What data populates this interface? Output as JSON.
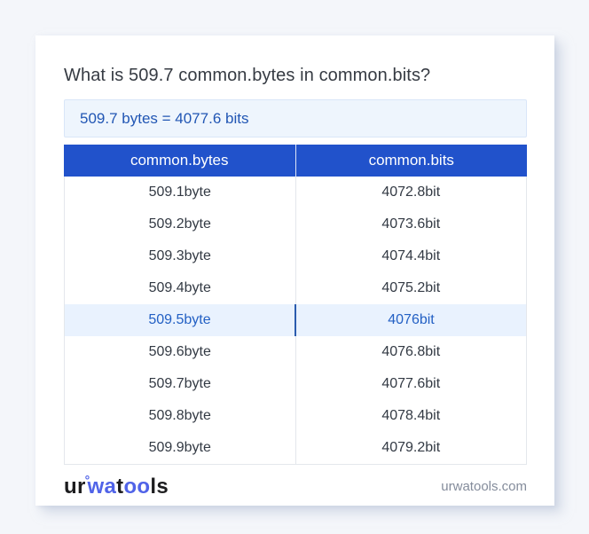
{
  "header": {
    "title": "What is 509.7 common.bytes in common.bits?",
    "result": "509.7 bytes = 4077.6 bits"
  },
  "table": {
    "headers": [
      "common.bytes",
      "common.bits"
    ],
    "rows": [
      {
        "bytes": "509.1byte",
        "bits": "4072.8bit"
      },
      {
        "bytes": "509.2byte",
        "bits": "4073.6bit"
      },
      {
        "bytes": "509.3byte",
        "bits": "4074.4bit"
      },
      {
        "bytes": "509.4byte",
        "bits": "4075.2bit"
      },
      {
        "bytes": "509.5byte",
        "bits": "4076bit"
      },
      {
        "bytes": "509.6byte",
        "bits": "4076.8bit"
      },
      {
        "bytes": "509.7byte",
        "bits": "4077.6bit"
      },
      {
        "bytes": "509.8byte",
        "bits": "4078.4bit"
      },
      {
        "bytes": "509.9byte",
        "bits": "4079.2bit"
      }
    ],
    "highlighted_row_index": 4
  },
  "footer": {
    "logo_parts": [
      "ur",
      "wa",
      "t",
      "oo",
      "ls"
    ],
    "logo_ring": "°",
    "domain": "urwatools.com"
  },
  "colors": {
    "page_bg": "#f4f6fa",
    "card_bg": "#ffffff",
    "header_blue": "#2152cb",
    "result_bg": "#eef5fd",
    "result_text": "#2156b4",
    "highlight_bg": "#e9f2fe",
    "highlight_text": "#2360c4",
    "highlight_divider": "#2b5cae",
    "row_text": "#333a44",
    "table_border": "#e4e7ec",
    "logo_blue": "#5063e8",
    "domain_gray": "#848c9b"
  }
}
